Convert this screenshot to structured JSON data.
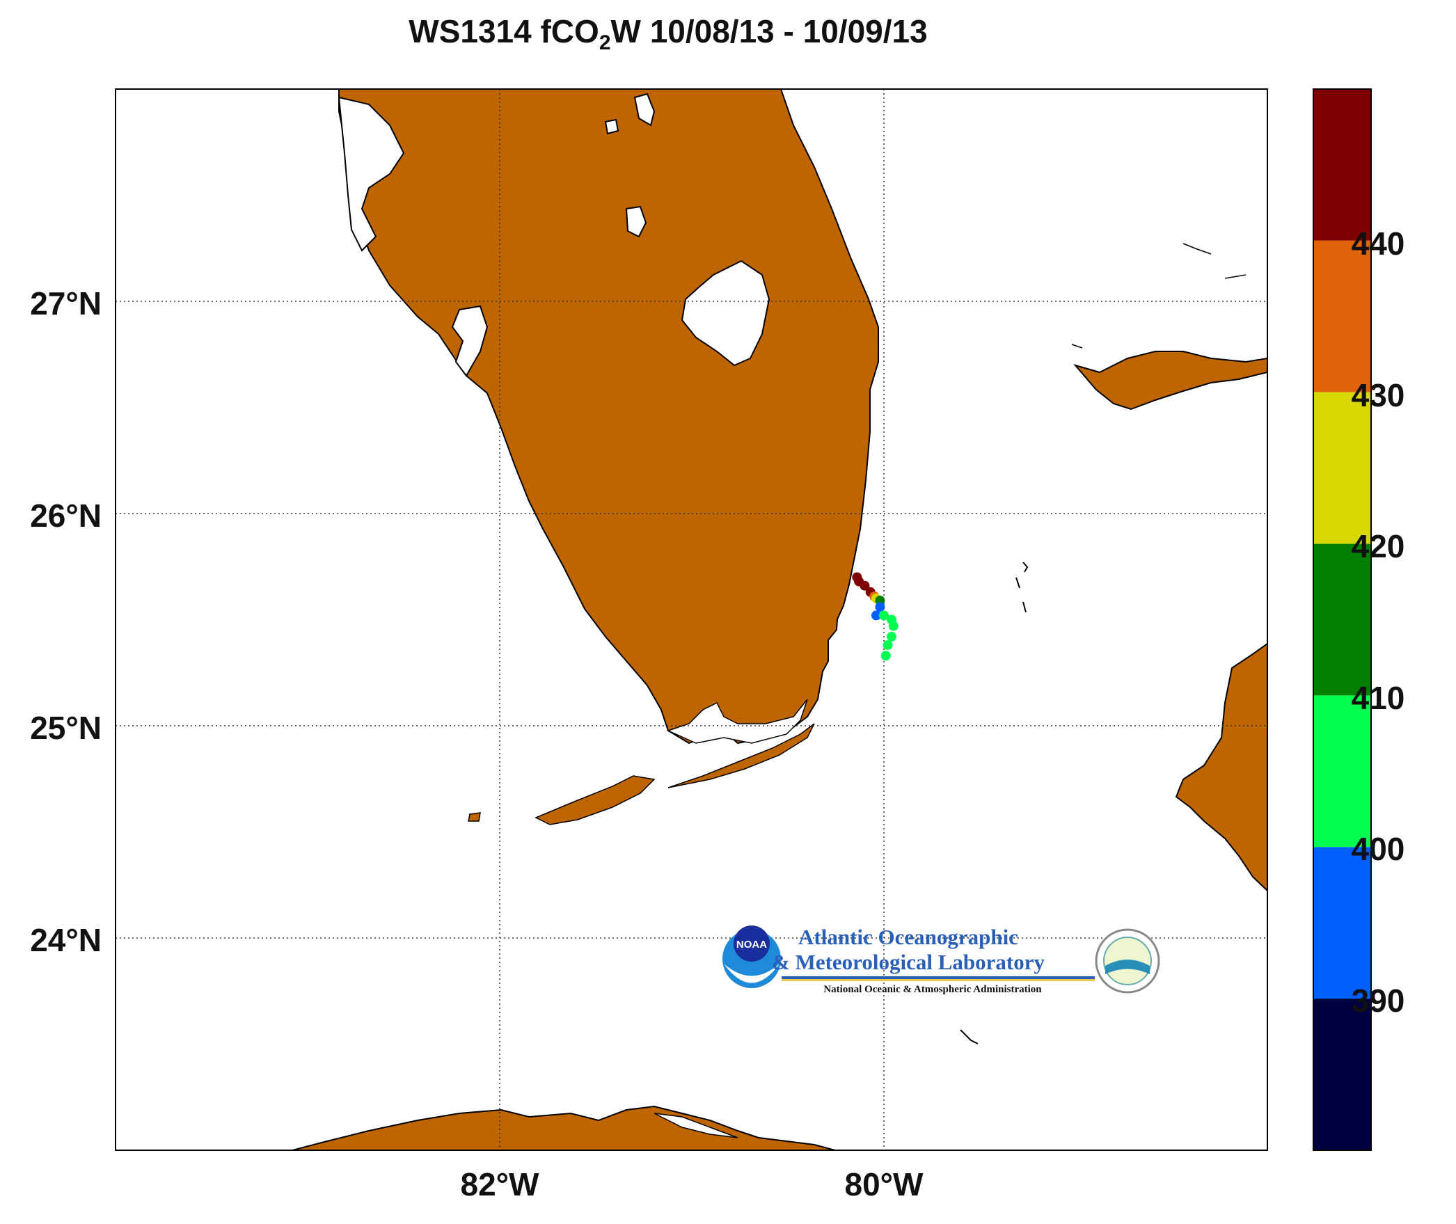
{
  "title": {
    "prefix": "WS1314 fCO",
    "subscript": "2",
    "suffix": "W 10/08/13 - 10/09/13"
  },
  "map": {
    "lat_labels": [
      "27°N",
      "26°N",
      "25°N",
      "24°N"
    ],
    "lon_labels": [
      "82°W",
      "80°W"
    ],
    "grid": "dotted",
    "land_color": "#bf6500",
    "ocean_color": "#ffffff"
  },
  "colorbar": {
    "labels": [
      "440",
      "430",
      "420",
      "410",
      "400",
      "390"
    ],
    "bins": [
      {
        "range": "440+",
        "color": "#7f0000"
      },
      {
        "range": "430-440",
        "color": "#e0620a"
      },
      {
        "range": "420-430",
        "color": "#d8d800"
      },
      {
        "range": "410-420",
        "color": "#007f00"
      },
      {
        "range": "400-410",
        "color": "#00ff50"
      },
      {
        "range": "390-400",
        "color": "#0060ff"
      },
      {
        "range": "<390",
        "color": "#000040"
      }
    ]
  },
  "track": [
    {
      "lon": -80.14,
      "lat": 25.7,
      "value": 445
    },
    {
      "lon": -80.13,
      "lat": 25.68,
      "value": 445
    },
    {
      "lon": -80.1,
      "lat": 25.66,
      "value": 445
    },
    {
      "lon": -80.07,
      "lat": 25.63,
      "value": 445
    },
    {
      "lon": -80.05,
      "lat": 25.61,
      "value": 435
    },
    {
      "lon": -80.04,
      "lat": 25.6,
      "value": 425
    },
    {
      "lon": -80.02,
      "lat": 25.59,
      "value": 415
    },
    {
      "lon": -80.02,
      "lat": 25.56,
      "value": 395
    },
    {
      "lon": -80.04,
      "lat": 25.52,
      "value": 395
    },
    {
      "lon": -80.0,
      "lat": 25.52,
      "value": 405
    },
    {
      "lon": -79.96,
      "lat": 25.5,
      "value": 405
    },
    {
      "lon": -79.95,
      "lat": 25.47,
      "value": 405
    },
    {
      "lon": -79.96,
      "lat": 25.42,
      "value": 405
    },
    {
      "lon": -79.98,
      "lat": 25.38,
      "value": 405
    },
    {
      "lon": -79.99,
      "lat": 25.33,
      "value": 405
    }
  ],
  "logo": {
    "badge": "NOAA",
    "line1": "Atlantic Oceanographic",
    "line2": "& Meteorological Laboratory",
    "line3": "National Oceanic & Atmospheric Administration"
  }
}
